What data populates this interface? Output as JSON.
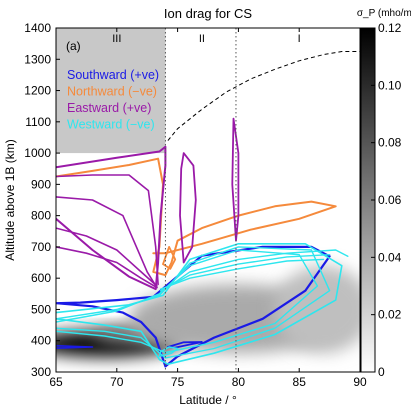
{
  "chart_data": {
    "type": "contour",
    "title": "Ion drag for CS",
    "panel_label": "(a)",
    "xlabel": "Latitude / °",
    "ylabel": "Altitude above 1B (km)",
    "xlim": [
      65,
      90
    ],
    "ylim": [
      300,
      1400
    ],
    "xticks": [
      65,
      70,
      75,
      80,
      85,
      90
    ],
    "yticks": [
      300,
      400,
      500,
      600,
      700,
      800,
      900,
      1000,
      1100,
      1200,
      1300,
      1400
    ],
    "grid": false,
    "colorbar": {
      "label": "σ_P (mho/m)",
      "range": [
        0,
        0.12
      ],
      "ticks": [
        0,
        0.02,
        0.04,
        0.06,
        0.08,
        0.1,
        0.12
      ],
      "tick_labels": [
        "0",
        "0.02",
        "0.04",
        "0.06",
        "0.08",
        "0.10",
        "0.12"
      ]
    },
    "regions": [
      {
        "label": "III",
        "x_range": [
          65,
          74
        ],
        "x_label": 70
      },
      {
        "label": "II",
        "x_range": [
          74,
          79.8
        ],
        "x_label": 77
      },
      {
        "label": "I",
        "x_range": [
          79.8,
          90
        ],
        "x_label": 85
      }
    ],
    "region_boundaries": [
      74,
      79.8
    ],
    "shaded_region": {
      "x_range": [
        65,
        74
      ],
      "y_range": [
        1000,
        1400
      ]
    },
    "dashed_boundary": [
      [
        74.2,
        1040
      ],
      [
        75,
        1078
      ],
      [
        77,
        1140
      ],
      [
        79,
        1195
      ],
      [
        81,
        1237
      ],
      [
        83,
        1268
      ],
      [
        85,
        1295
      ],
      [
        87,
        1315
      ],
      [
        88.5,
        1325
      ],
      [
        90,
        1325
      ]
    ],
    "legend": [
      {
        "name": "Southward (+ve)",
        "color": "#1a1ae6"
      },
      {
        "name": "Northward (−ve)",
        "color": "#f58a3c"
      },
      {
        "name": "Eastward (+ve)",
        "color": "#9a1aa8"
      },
      {
        "name": "Westward (−ve)",
        "color": "#2ee6ee"
      }
    ],
    "legend_position": "top-left",
    "conductivity_blobs": [
      {
        "cx": 69,
        "cy": 390,
        "rx": 6,
        "ry": 42,
        "value": 0.12
      },
      {
        "cx": 72,
        "cy": 420,
        "rx": 4,
        "ry": 30,
        "value": 0.06
      },
      {
        "cx": 80,
        "cy": 470,
        "rx": 9,
        "ry": 110,
        "value": 0.04
      },
      {
        "cx": 87,
        "cy": 500,
        "rx": 4,
        "ry": 140,
        "value": 0.03
      }
    ],
    "series": [
      {
        "name": "Southward (+ve)",
        "color": "#1a1ae6",
        "width": 2.2,
        "points": [
          [
            65,
            520
          ],
          [
            68,
            510
          ],
          [
            70.5,
            490
          ],
          [
            72,
            460
          ],
          [
            73.2,
            410
          ],
          [
            74,
            318
          ],
          [
            75,
            350
          ],
          [
            78,
            410
          ],
          [
            82,
            470
          ],
          [
            85.5,
            560
          ],
          [
            87.5,
            670
          ],
          [
            86,
            700
          ],
          [
            82,
            700
          ],
          [
            77,
            672
          ],
          [
            73,
            540
          ],
          [
            70,
            530
          ],
          [
            67,
            522
          ],
          [
            65,
            520
          ]
        ]
      },
      {
        "name": "Southward (+ve)",
        "color": "#1a1ae6",
        "width": 1.8,
        "points": [
          [
            74.2,
            380
          ],
          [
            75.5,
            395
          ],
          [
            77,
            396
          ],
          [
            76,
            388
          ],
          [
            74.8,
            378
          ],
          [
            74.2,
            380
          ]
        ]
      },
      {
        "name": "Southward (+ve)",
        "color": "#1a1ae6",
        "width": 1.6,
        "points": [
          [
            65,
            384
          ],
          [
            66.5,
            382
          ],
          [
            68,
            380
          ],
          [
            66.5,
            378
          ],
          [
            65,
            376
          ]
        ]
      },
      {
        "name": "Northward (−ve)",
        "color": "#f58a3c",
        "width": 2.0,
        "points": [
          [
            65,
            925
          ],
          [
            68,
            943
          ],
          [
            71,
            962
          ],
          [
            73.4,
            982
          ],
          [
            73.8,
            900
          ],
          [
            73.5,
            700
          ],
          [
            73,
            620
          ],
          [
            74,
            610
          ],
          [
            74.5,
            650
          ],
          [
            75,
            720
          ],
          [
            77,
            760
          ],
          [
            80,
            800
          ],
          [
            83,
            830
          ],
          [
            86,
            845
          ],
          [
            88,
            830
          ],
          [
            85,
            790
          ],
          [
            81,
            755
          ],
          [
            77,
            710
          ],
          [
            74,
            680
          ],
          [
            73,
            680
          ]
        ]
      },
      {
        "name": "Northward (−ve)",
        "color": "#f58a3c",
        "width": 1.8,
        "points": [
          [
            73.8,
            645
          ],
          [
            74.3,
            700
          ],
          [
            74.8,
            660
          ],
          [
            74.4,
            630
          ],
          [
            73.8,
            645
          ]
        ]
      },
      {
        "name": "Eastward (+ve)",
        "color": "#9a1aa8",
        "width": 2.0,
        "points": [
          [
            65,
            955
          ],
          [
            70,
            985
          ],
          [
            73.5,
            1005
          ],
          [
            74,
            1020
          ],
          [
            74,
            960
          ],
          [
            73.6,
            800
          ],
          [
            73.4,
            650
          ],
          [
            73.2,
            565
          ],
          [
            71,
            605
          ],
          [
            68,
            690
          ],
          [
            65,
            790
          ]
        ]
      },
      {
        "name": "Eastward (+ve)",
        "color": "#9a1aa8",
        "width": 1.6,
        "points": [
          [
            65,
            860
          ],
          [
            68,
            850
          ],
          [
            70.5,
            800
          ],
          [
            72.5,
            620
          ],
          [
            73.3,
            570
          ]
        ]
      },
      {
        "name": "Eastward (+ve)",
        "color": "#9a1aa8",
        "width": 1.6,
        "points": [
          [
            65,
            760
          ],
          [
            67.5,
            735
          ],
          [
            70,
            690
          ],
          [
            72,
            620
          ],
          [
            73.3,
            575
          ]
        ]
      },
      {
        "name": "Eastward (+ve)",
        "color": "#9a1aa8",
        "width": 1.6,
        "points": [
          [
            65,
            700
          ],
          [
            67.5,
            680
          ],
          [
            70,
            650
          ],
          [
            72,
            600
          ],
          [
            73.3,
            570
          ]
        ]
      },
      {
        "name": "Eastward (+ve)",
        "color": "#9a1aa8",
        "width": 1.6,
        "points": [
          [
            65,
            925
          ],
          [
            68,
            930
          ],
          [
            71,
            930
          ],
          [
            72.6,
            880
          ],
          [
            73.2,
            700
          ],
          [
            73.4,
            580
          ]
        ]
      },
      {
        "name": "Eastward (+ve)",
        "color": "#9a1aa8",
        "width": 1.8,
        "points": [
          [
            75.5,
            1000
          ],
          [
            76.3,
            960
          ],
          [
            76.5,
            850
          ],
          [
            76.2,
            700
          ],
          [
            75.5,
            650
          ],
          [
            75.2,
            800
          ],
          [
            75.3,
            950
          ],
          [
            75.5,
            1000
          ]
        ]
      },
      {
        "name": "Eastward (+ve)",
        "color": "#9a1aa8",
        "width": 1.8,
        "points": [
          [
            79.6,
            1110
          ],
          [
            80,
            1000
          ],
          [
            80,
            800
          ],
          [
            79.8,
            720
          ],
          [
            79.5,
            900
          ],
          [
            79.6,
            1110
          ]
        ]
      },
      {
        "name": "Westward (−ve)",
        "color": "#2ee6ee",
        "width": 1.6,
        "points": [
          [
            65,
            470
          ],
          [
            69,
            450
          ],
          [
            72,
            430
          ],
          [
            73.5,
            340
          ],
          [
            74.2,
            325
          ],
          [
            78,
            360
          ],
          [
            83,
            420
          ],
          [
            88,
            530
          ],
          [
            88.5,
            640
          ],
          [
            85.5,
            710
          ],
          [
            80,
            710
          ],
          [
            76,
            660
          ],
          [
            73.8,
            545
          ],
          [
            71,
            515
          ],
          [
            65,
            490
          ]
        ]
      },
      {
        "name": "Westward (−ve)",
        "color": "#2ee6ee",
        "width": 1.4,
        "points": [
          [
            65,
            440
          ],
          [
            69,
            430
          ],
          [
            72,
            410
          ],
          [
            74,
            345
          ],
          [
            78,
            375
          ],
          [
            83,
            440
          ],
          [
            87.5,
            560
          ],
          [
            86,
            690
          ],
          [
            80,
            700
          ],
          [
            76,
            648
          ],
          [
            73.5,
            545
          ],
          [
            70,
            500
          ],
          [
            65,
            470
          ]
        ]
      },
      {
        "name": "Westward (−ve)",
        "color": "#2ee6ee",
        "width": 1.4,
        "points": [
          [
            65,
            430
          ],
          [
            69,
            415
          ],
          [
            72,
            395
          ],
          [
            74,
            362
          ],
          [
            78,
            395
          ],
          [
            83,
            455
          ],
          [
            86.5,
            575
          ],
          [
            85,
            675
          ],
          [
            80,
            690
          ],
          [
            76,
            640
          ],
          [
            73.5,
            550
          ],
          [
            70,
            495
          ],
          [
            65,
            460
          ]
        ]
      },
      {
        "name": "Westward (−ve)",
        "color": "#2ee6ee",
        "width": 1.4,
        "points": [
          [
            73.6,
            555
          ],
          [
            76,
            620
          ],
          [
            80,
            660
          ],
          [
            84,
            680
          ],
          [
            88,
            690
          ],
          [
            89,
            670
          ]
        ]
      },
      {
        "name": "Westward (−ve)",
        "color": "#2ee6ee",
        "width": 1.4,
        "points": [
          [
            73.6,
            560
          ],
          [
            76,
            610
          ],
          [
            80,
            645
          ],
          [
            84,
            668
          ],
          [
            87.5,
            675
          ]
        ]
      },
      {
        "name": "Westward (−ve)",
        "color": "#2ee6ee",
        "width": 1.4,
        "points": [
          [
            73.6,
            565
          ],
          [
            76,
            600
          ],
          [
            80,
            630
          ],
          [
            84,
            655
          ],
          [
            87,
            660
          ]
        ]
      },
      {
        "name": "Westward (−ve)",
        "color": "#2ee6ee",
        "width": 1.4,
        "points": [
          [
            73.5,
            350
          ],
          [
            74.5,
            360
          ],
          [
            75,
            375
          ],
          [
            74.3,
            380
          ],
          [
            73.6,
            365
          ],
          [
            73.5,
            350
          ]
        ]
      }
    ]
  }
}
